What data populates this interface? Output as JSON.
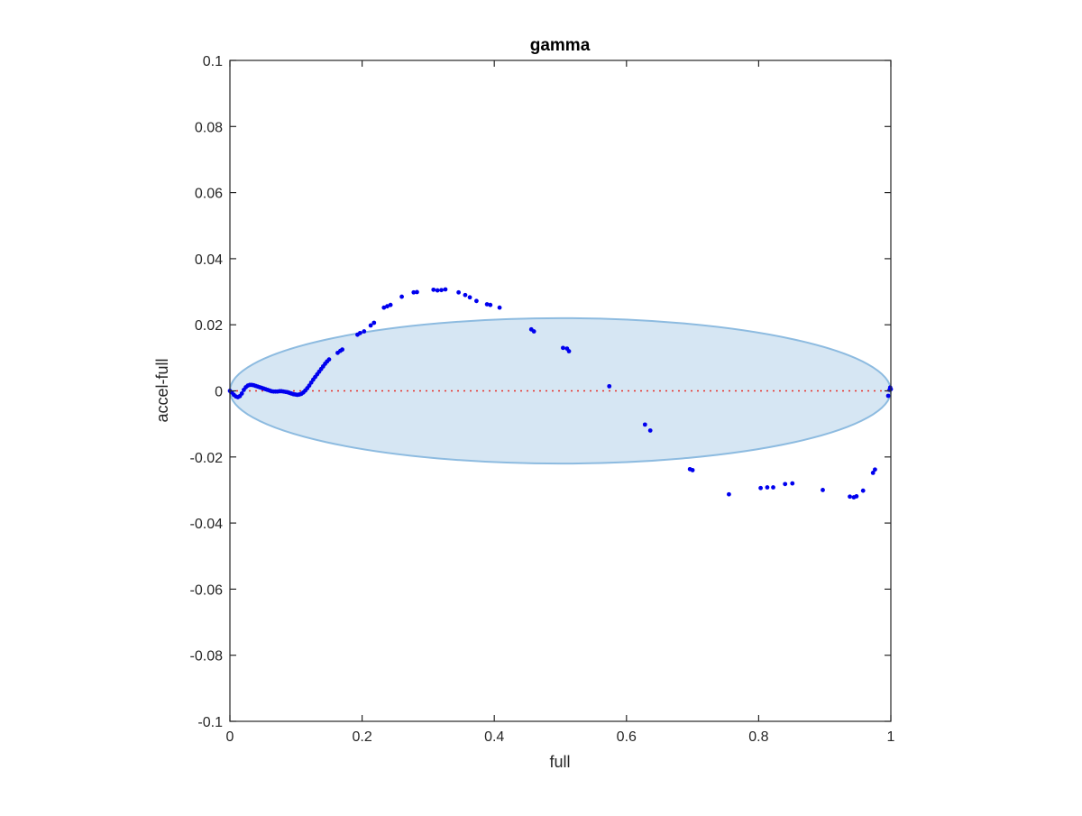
{
  "chart_data": {
    "type": "scatter",
    "title": "gamma",
    "xlabel": "full",
    "ylabel": "accel-full",
    "xlim": [
      0,
      1
    ],
    "ylim": [
      -0.1,
      0.1
    ],
    "xticks": [
      0,
      0.2,
      0.4,
      0.6,
      0.8,
      1
    ],
    "xtick_labels": [
      "0",
      "0.2",
      "0.4",
      "0.6",
      "0.8",
      "1"
    ],
    "yticks": [
      -0.1,
      -0.08,
      -0.06,
      -0.04,
      -0.02,
      0,
      0.02,
      0.04,
      0.06,
      0.08,
      0.1
    ],
    "ytick_labels": [
      "-0.1",
      "-0.08",
      "-0.06",
      "-0.04",
      "-0.02",
      "0",
      "0.02",
      "0.04",
      "0.06",
      "0.08",
      "0.1"
    ],
    "grid": false,
    "ellipse": {
      "center": [
        0.5,
        0
      ],
      "x_radius": 0.5,
      "y_radius": 0.022,
      "fill": "#d6e6f3",
      "stroke": "#8dbbe0"
    },
    "reference_line": {
      "y": 0,
      "x_range": [
        0,
        1
      ],
      "color": "#e8302a",
      "style": "dotted"
    },
    "series": [
      {
        "color": "#0000ee",
        "points": [
          [
            0.0,
            0.0
          ],
          [
            0.003,
            -0.0005
          ],
          [
            0.006,
            -0.0012
          ],
          [
            0.009,
            -0.0017
          ],
          [
            0.012,
            -0.0019
          ],
          [
            0.015,
            -0.0016
          ],
          [
            0.018,
            -0.0008
          ],
          [
            0.021,
            0.0003
          ],
          [
            0.024,
            0.0011
          ],
          [
            0.027,
            0.0016
          ],
          [
            0.03,
            0.0018
          ],
          [
            0.033,
            0.0018
          ],
          [
            0.036,
            0.0017
          ],
          [
            0.039,
            0.0015
          ],
          [
            0.042,
            0.0013
          ],
          [
            0.045,
            0.0011
          ],
          [
            0.048,
            0.0009
          ],
          [
            0.051,
            0.0007
          ],
          [
            0.054,
            0.0005
          ],
          [
            0.057,
            0.0003
          ],
          [
            0.06,
            0.0001
          ],
          [
            0.063,
            -0.0001
          ],
          [
            0.066,
            -0.0002
          ],
          [
            0.069,
            -0.0002
          ],
          [
            0.072,
            -0.0002
          ],
          [
            0.075,
            -0.0001
          ],
          [
            0.078,
            -0.0001
          ],
          [
            0.081,
            -0.0002
          ],
          [
            0.084,
            -0.0003
          ],
          [
            0.087,
            -0.0004
          ],
          [
            0.09,
            -0.0006
          ],
          [
            0.093,
            -0.0008
          ],
          [
            0.096,
            -0.001
          ],
          [
            0.099,
            -0.0011
          ],
          [
            0.102,
            -0.0012
          ],
          [
            0.105,
            -0.0011
          ],
          [
            0.108,
            -0.0009
          ],
          [
            0.111,
            -0.0005
          ],
          [
            0.114,
            0.0001
          ],
          [
            0.117,
            0.0008
          ],
          [
            0.12,
            0.0016
          ],
          [
            0.123,
            0.0025
          ],
          [
            0.126,
            0.0034
          ],
          [
            0.129,
            0.0042
          ],
          [
            0.132,
            0.005
          ],
          [
            0.135,
            0.0058
          ],
          [
            0.138,
            0.0066
          ],
          [
            0.141,
            0.0074
          ],
          [
            0.144,
            0.0082
          ],
          [
            0.147,
            0.0089
          ],
          [
            0.15,
            0.0095
          ],
          [
            0.163,
            0.0115
          ],
          [
            0.167,
            0.0121
          ],
          [
            0.17,
            0.0125
          ],
          [
            0.193,
            0.017
          ],
          [
            0.197,
            0.0175
          ],
          [
            0.203,
            0.018
          ],
          [
            0.213,
            0.0198
          ],
          [
            0.218,
            0.0206
          ],
          [
            0.233,
            0.0252
          ],
          [
            0.238,
            0.0256
          ],
          [
            0.243,
            0.026
          ],
          [
            0.26,
            0.0285
          ],
          [
            0.278,
            0.0298
          ],
          [
            0.283,
            0.0299
          ],
          [
            0.308,
            0.0306
          ],
          [
            0.314,
            0.0304
          ],
          [
            0.32,
            0.0305
          ],
          [
            0.326,
            0.0307
          ],
          [
            0.346,
            0.0298
          ],
          [
            0.356,
            0.029
          ],
          [
            0.363,
            0.0283
          ],
          [
            0.373,
            0.0272
          ],
          [
            0.389,
            0.0262
          ],
          [
            0.394,
            0.026
          ],
          [
            0.408,
            0.0252
          ],
          [
            0.456,
            0.0186
          ],
          [
            0.46,
            0.018
          ],
          [
            0.504,
            0.013
          ],
          [
            0.51,
            0.0128
          ],
          [
            0.513,
            0.012
          ],
          [
            0.574,
            0.0014
          ],
          [
            0.628,
            -0.0102
          ],
          [
            0.636,
            -0.012
          ],
          [
            0.696,
            -0.0237
          ],
          [
            0.7,
            -0.024
          ],
          [
            0.755,
            -0.0313
          ],
          [
            0.803,
            -0.0294
          ],
          [
            0.813,
            -0.0292
          ],
          [
            0.822,
            -0.0292
          ],
          [
            0.84,
            -0.0282
          ],
          [
            0.851,
            -0.028
          ],
          [
            0.897,
            -0.03
          ],
          [
            0.938,
            -0.032
          ],
          [
            0.944,
            -0.0322
          ],
          [
            0.948,
            -0.0319
          ],
          [
            0.958,
            -0.0302
          ],
          [
            0.973,
            -0.0248
          ],
          [
            0.976,
            -0.0238
          ],
          [
            0.996,
            -0.0015
          ],
          [
            0.998,
            0.0003
          ],
          [
            0.999,
            0.001
          ],
          [
            1.0,
            0.0005
          ]
        ]
      }
    ]
  }
}
